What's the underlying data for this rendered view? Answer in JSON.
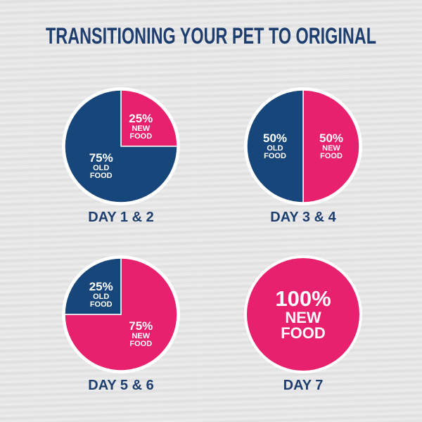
{
  "title": "TRANSITIONING YOUR PET TO ORIGINAL",
  "chart_data": [
    {
      "type": "pie",
      "title": "DAY 1 & 2",
      "categories": [
        "NEW FOOD",
        "OLD FOOD"
      ],
      "values": [
        25,
        75
      ],
      "value_labels": [
        "25%",
        "75%"
      ],
      "colors": [
        "#e8216e",
        "#17477a"
      ]
    },
    {
      "type": "pie",
      "title": "DAY 3 & 4",
      "categories": [
        "NEW FOOD",
        "OLD FOOD"
      ],
      "values": [
        50,
        50
      ],
      "value_labels": [
        "50%",
        "50%"
      ],
      "colors": [
        "#e8216e",
        "#17477a"
      ]
    },
    {
      "type": "pie",
      "title": "DAY 5 & 6",
      "categories": [
        "NEW FOOD",
        "OLD FOOD"
      ],
      "values": [
        75,
        25
      ],
      "value_labels": [
        "75%",
        "25%"
      ],
      "colors": [
        "#e8216e",
        "#17477a"
      ]
    },
    {
      "type": "pie",
      "title": "DAY 7",
      "categories": [
        "NEW FOOD"
      ],
      "values": [
        100
      ],
      "value_labels": [
        "100%"
      ],
      "colors": [
        "#e8216e"
      ]
    }
  ]
}
